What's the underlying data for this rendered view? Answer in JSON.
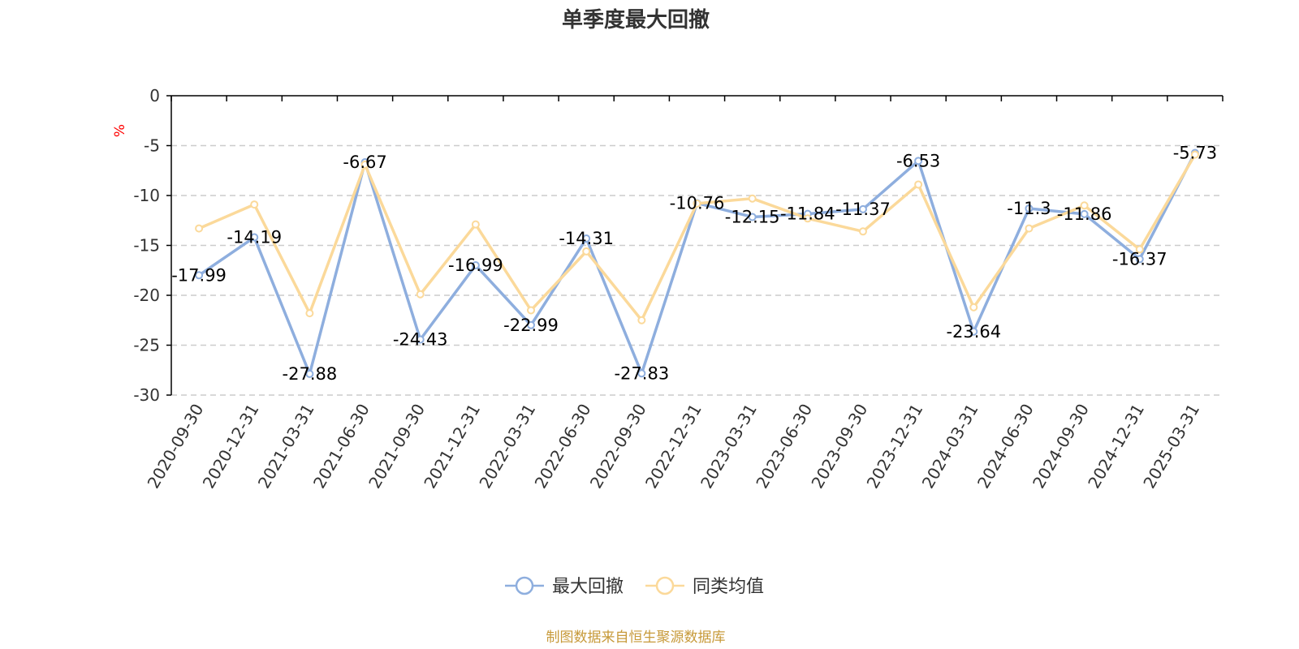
{
  "colors": {
    "series1": "#8eaede",
    "series2": "#fbd99a",
    "unit": "#ff0000",
    "source": "#c79a3a",
    "grid": "#cccccc",
    "axis": "#000000"
  },
  "chart_data": {
    "type": "line",
    "title": "单季度最大回撤",
    "ylabel": "%",
    "ylim": [
      -30,
      0
    ],
    "yticks": [
      0,
      -5,
      -10,
      -15,
      -20,
      -25,
      -30
    ],
    "grid": "horizontal dashed",
    "legend_position": "bottom-center",
    "categories": [
      "2020-09-30",
      "2020-12-31",
      "2021-03-31",
      "2021-06-30",
      "2021-09-30",
      "2021-12-31",
      "2022-03-31",
      "2022-06-30",
      "2022-09-30",
      "2022-12-31",
      "2023-03-31",
      "2023-06-30",
      "2023-09-30",
      "2023-12-31",
      "2024-03-31",
      "2024-06-30",
      "2024-09-30",
      "2024-12-31",
      "2025-03-31"
    ],
    "series": [
      {
        "name": "最大回撤",
        "values": [
          -17.99,
          -14.19,
          -27.88,
          -6.67,
          -24.43,
          -16.99,
          -22.99,
          -14.31,
          -27.83,
          -10.76,
          -12.15,
          -11.84,
          -11.37,
          -6.53,
          -23.64,
          -11.3,
          -11.86,
          -16.37,
          -5.73
        ],
        "labels": [
          "-17.99",
          "-14.19",
          "-27.88",
          "-6.67",
          "-24.43",
          "-16.99",
          "-22.99",
          "-14.31",
          "-27.83",
          "-10.76",
          "-12.15",
          "-11.84",
          "-11.37",
          "-6.53",
          "-23.64",
          "-11.3",
          "-11.86",
          "-16.37",
          "-5.73"
        ]
      },
      {
        "name": "同类均值",
        "values": [
          -13.3,
          -10.9,
          -21.8,
          -6.9,
          -19.9,
          -12.9,
          -21.5,
          -15.6,
          -22.5,
          -10.8,
          -10.3,
          -12.3,
          -13.6,
          -8.9,
          -21.2,
          -13.3,
          -11.0,
          -15.4,
          -5.9
        ]
      }
    ]
  },
  "source": "制图数据来自恒生聚源数据库"
}
